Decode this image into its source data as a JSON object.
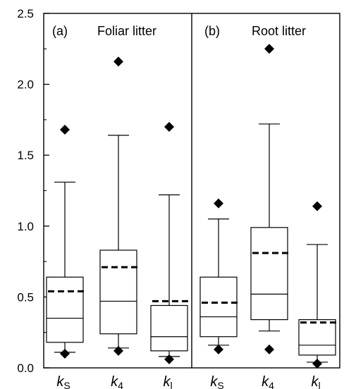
{
  "chart_data": [
    {
      "type": "box",
      "panel_label": "(a)",
      "panel_title": "Foliar litter",
      "ylim": [
        0,
        2.5
      ],
      "yticks": [
        "0.0",
        "0.5",
        "1.0",
        "1.5",
        "2.0",
        "2.5"
      ],
      "categories": [
        {
          "main": "k",
          "sub": "S"
        },
        {
          "main": "k",
          "sub": "4"
        },
        {
          "main": "k",
          "sub": "l"
        }
      ],
      "boxes": [
        {
          "whisker_low": 0.11,
          "q1": 0.18,
          "median": 0.35,
          "q3": 0.64,
          "whisker_high": 1.31,
          "mean": 0.54,
          "outliers": [
            0.1,
            1.68
          ]
        },
        {
          "whisker_low": 0.14,
          "q1": 0.24,
          "median": 0.47,
          "q3": 0.83,
          "whisker_high": 1.64,
          "mean": 0.71,
          "outliers": [
            0.12,
            2.16
          ]
        },
        {
          "whisker_low": 0.08,
          "q1": 0.12,
          "median": 0.22,
          "q3": 0.44,
          "whisker_high": 1.22,
          "mean": 0.47,
          "outliers": [
            0.06,
            1.7
          ]
        }
      ]
    },
    {
      "type": "box",
      "panel_label": "(b)",
      "panel_title": "Root litter",
      "ylim": [
        0,
        2.5
      ],
      "categories": [
        {
          "main": "k",
          "sub": "S"
        },
        {
          "main": "k",
          "sub": "4"
        },
        {
          "main": "k",
          "sub": "l"
        }
      ],
      "boxes": [
        {
          "whisker_low": 0.16,
          "q1": 0.22,
          "median": 0.36,
          "q3": 0.64,
          "whisker_high": 1.05,
          "mean": 0.46,
          "outliers": [
            0.13,
            1.16
          ]
        },
        {
          "whisker_low": 0.26,
          "q1": 0.34,
          "median": 0.52,
          "q3": 0.99,
          "whisker_high": 1.72,
          "mean": 0.81,
          "outliers": [
            0.13,
            2.25
          ]
        },
        {
          "whisker_low": 0.04,
          "q1": 0.09,
          "median": 0.16,
          "q3": 0.34,
          "whisker_high": 0.87,
          "mean": 0.32,
          "outliers": [
            0.03,
            1.14
          ]
        }
      ]
    }
  ]
}
